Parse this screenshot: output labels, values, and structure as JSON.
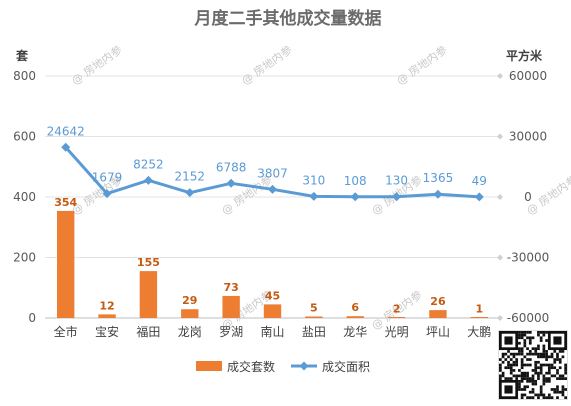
{
  "chart_data": {
    "type": "bar",
    "title": "月度二手其他成交量数据",
    "left_axis_unit": "套",
    "right_axis_unit": "平方米",
    "categories": [
      "全市",
      "宝安",
      "福田",
      "龙岗",
      "罗湖",
      "南山",
      "盐田",
      "龙华",
      "光明",
      "坪山",
      "大鹏"
    ],
    "left_axis": {
      "min": 0,
      "max": 800,
      "ticks": [
        0,
        200,
        400,
        600,
        800
      ]
    },
    "right_axis": {
      "min": -60000,
      "max": 60000,
      "ticks": [
        -60000,
        -30000,
        0,
        30000,
        60000
      ]
    },
    "series": [
      {
        "name": "成交套数",
        "type": "bar",
        "axis": "left",
        "color": "#ed7d31",
        "values": [
          354,
          12,
          155,
          29,
          73,
          45,
          5,
          6,
          2,
          26,
          1
        ]
      },
      {
        "name": "成交面积",
        "type": "line",
        "axis": "right",
        "color": "#5b9bd5",
        "values": [
          24642,
          1679,
          8252,
          2152,
          6788,
          3807,
          310,
          108,
          130,
          1365,
          49
        ]
      }
    ],
    "grid": true,
    "legend_position": "bottom"
  },
  "watermark": "房地内参"
}
